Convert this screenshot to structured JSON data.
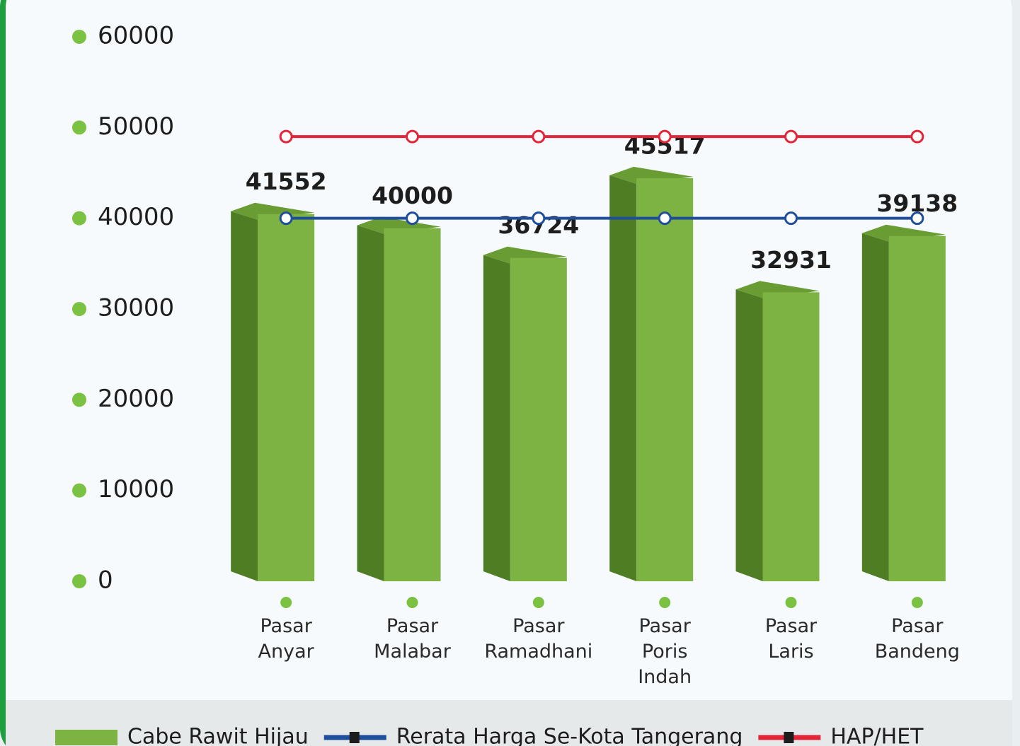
{
  "chart_data": {
    "type": "bar",
    "categories": [
      "Pasar Anyar",
      "Pasar Malabar",
      "Pasar Ramadhani",
      "Pasar Poris Indah",
      "Pasar Laris",
      "Pasar Bandeng"
    ],
    "series": [
      {
        "name": "Cabe Rawit Hijau",
        "type": "bar",
        "color": "#7cb342",
        "values": [
          41552,
          40000,
          36724,
          45517,
          32931,
          39138
        ]
      },
      {
        "name": "Rerata Harga Se-Kota Tangerang",
        "type": "line",
        "color": "#1f4e9c",
        "values": [
          40000,
          40000,
          40000,
          40000,
          40000,
          40000
        ]
      },
      {
        "name": "HAP/HET",
        "type": "line",
        "color": "#e3253a",
        "values": [
          49000,
          49000,
          49000,
          49000,
          49000,
          49000
        ]
      }
    ],
    "ylim": [
      0,
      60000
    ],
    "yticks": [
      0,
      10000,
      20000,
      30000,
      40000,
      50000,
      60000
    ]
  }
}
